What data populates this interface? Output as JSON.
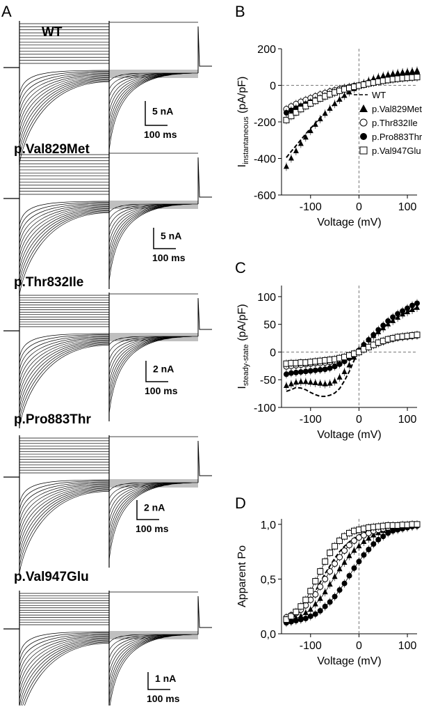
{
  "panel_labels": {
    "a": "A",
    "b": "B",
    "c": "C",
    "d": "D"
  },
  "traces": [
    {
      "title": "WT",
      "scale_current": "5 nA",
      "scale_time": "100 ms"
    },
    {
      "title": "p.Val829Met",
      "scale_current": "5 nA",
      "scale_time": "100 ms"
    },
    {
      "title": "p.Thr832Ile",
      "scale_current": "2 nA",
      "scale_time": "100 ms"
    },
    {
      "title": "p.Pro883Thr",
      "scale_current": "2 nA",
      "scale_time": "100 ms"
    },
    {
      "title": "p.Val947Glu",
      "scale_current": "1 nA",
      "scale_time": "100 ms"
    }
  ],
  "legend": [
    {
      "label": "WT",
      "marker": "dash"
    },
    {
      "label": "p.Val829Met",
      "marker": "filled-triangle"
    },
    {
      "label": "p.Thr832Ile",
      "marker": "open-circle"
    },
    {
      "label": "p.Pro883Thr",
      "marker": "filled-circle"
    },
    {
      "label": "p.Val947Glu",
      "marker": "open-square"
    }
  ],
  "chart_data": [
    {
      "panel": "B",
      "type": "scatter",
      "ylabel_main": "I",
      "ylabel_sub": "instantaneous",
      "ylabel_unit": "(pA/pF)",
      "xlabel": "Voltage (mV)",
      "xlim": [
        -160,
        120
      ],
      "ylim": [
        -600,
        200
      ],
      "xticks": [
        -100,
        0,
        100
      ],
      "yticks": [
        -600,
        -400,
        -200,
        0,
        200
      ],
      "x": [
        -150,
        -140,
        -130,
        -120,
        -110,
        -100,
        -90,
        -80,
        -70,
        -60,
        -50,
        -40,
        -30,
        -20,
        -10,
        0,
        10,
        20,
        30,
        40,
        50,
        60,
        70,
        80,
        90,
        100,
        110,
        120
      ],
      "series": [
        {
          "name": "WT",
          "marker": "dash",
          "values": [
            -395,
            -362,
            -330,
            -298,
            -266,
            -236,
            -206,
            -178,
            -150,
            -124,
            -100,
            -77,
            -56,
            -37,
            -20,
            -5,
            8,
            17,
            24,
            29,
            33,
            36,
            39,
            42,
            44,
            46,
            48,
            50
          ]
        },
        {
          "name": "p.Val829Met",
          "marker": "filled-triangle",
          "values": [
            -445,
            -400,
            -360,
            -320,
            -285,
            -250,
            -215,
            -185,
            -155,
            -128,
            -102,
            -78,
            -57,
            -38,
            -20,
            -4,
            12,
            25,
            36,
            45,
            52,
            58,
            63,
            67,
            71,
            74,
            77,
            80
          ]
        },
        {
          "name": "p.Thr832Ile",
          "marker": "open-circle",
          "values": [
            -130,
            -115,
            -102,
            -90,
            -80,
            -70,
            -60,
            -50,
            -42,
            -34,
            -27,
            -20,
            -14,
            -9,
            -4,
            0,
            6,
            12,
            17,
            22,
            26,
            30,
            33,
            36,
            39,
            41,
            43,
            45
          ]
        },
        {
          "name": "p.Pro883Thr",
          "marker": "filled-circle",
          "values": [
            -150,
            -137,
            -125,
            -113,
            -102,
            -91,
            -80,
            -70,
            -60,
            -50,
            -41,
            -32,
            -24,
            -16,
            -8,
            0,
            8,
            15,
            22,
            28,
            34,
            40,
            45,
            50,
            54,
            58,
            61,
            64
          ]
        },
        {
          "name": "p.Val947Glu",
          "marker": "open-square",
          "values": [
            -190,
            -168,
            -148,
            -130,
            -114,
            -99,
            -85,
            -72,
            -60,
            -49,
            -39,
            -30,
            -22,
            -15,
            -8,
            -2,
            4,
            10,
            15,
            20,
            25,
            29,
            33,
            36,
            39,
            41,
            43,
            45
          ]
        }
      ]
    },
    {
      "panel": "C",
      "type": "scatter",
      "ylabel_main": "I",
      "ylabel_sub": "steady-state",
      "ylabel_unit": "(pA/pF)",
      "xlabel": "Voltage (mV)",
      "xlim": [
        -160,
        120
      ],
      "ylim": [
        -100,
        120
      ],
      "xticks": [
        -100,
        0,
        100
      ],
      "yticks": [
        -100,
        -50,
        0,
        50,
        100
      ],
      "x": [
        -150,
        -140,
        -130,
        -120,
        -110,
        -100,
        -90,
        -80,
        -70,
        -60,
        -50,
        -40,
        -30,
        -20,
        -10,
        0,
        10,
        20,
        30,
        40,
        50,
        60,
        70,
        80,
        90,
        100,
        110,
        120
      ],
      "series": [
        {
          "name": "WT",
          "marker": "dash",
          "values": [
            -71,
            -68,
            -64,
            -65,
            -68,
            -73,
            -77,
            -80,
            -80,
            -78,
            -74,
            -66,
            -52,
            -35,
            -15,
            3,
            14,
            22,
            30,
            37,
            44,
            51,
            57,
            63,
            68,
            72,
            76,
            80
          ]
        },
        {
          "name": "p.Val829Met",
          "marker": "filled-triangle",
          "values": [
            -61,
            -58,
            -55,
            -54,
            -54,
            -55,
            -56,
            -57,
            -58,
            -57,
            -53,
            -46,
            -36,
            -24,
            -10,
            4,
            14,
            22,
            29,
            36,
            43,
            50,
            56,
            62,
            68,
            72,
            76,
            80
          ]
        },
        {
          "name": "p.Thr832Ile",
          "marker": "open-circle",
          "values": [
            -26,
            -25,
            -24,
            -23,
            -22,
            -21,
            -20,
            -20,
            -19,
            -18,
            -17,
            -15,
            -12,
            -8,
            -4,
            0,
            5,
            9,
            13,
            16,
            19,
            22,
            24,
            26,
            27,
            28,
            29,
            30
          ]
        },
        {
          "name": "p.Pro883Thr",
          "marker": "filled-circle",
          "values": [
            -40,
            -38,
            -37,
            -36,
            -35,
            -34,
            -33,
            -32,
            -31,
            -29,
            -26,
            -22,
            -17,
            -11,
            -5,
            3,
            13,
            22,
            31,
            40,
            48,
            56,
            63,
            69,
            74,
            79,
            84,
            88
          ]
        },
        {
          "name": "p.Val947Glu",
          "marker": "open-square",
          "values": [
            -21,
            -20,
            -20,
            -19,
            -19,
            -18,
            -17,
            -16,
            -15,
            -14,
            -13,
            -11,
            -9,
            -6,
            -3,
            0,
            5,
            9,
            13,
            17,
            20,
            23,
            25,
            27,
            28,
            29,
            30,
            31
          ]
        }
      ]
    },
    {
      "panel": "D",
      "type": "scatter",
      "ylabel_main": "Apparent Po",
      "xlabel": "Voltage (mV)",
      "xlim": [
        -160,
        120
      ],
      "ylim": [
        0,
        1.05
      ],
      "xticks": [
        -100,
        0,
        100
      ],
      "yticks": [
        0,
        0.5,
        1.0
      ],
      "ytick_labels": [
        "0,0",
        "0,5",
        "1,0"
      ],
      "x": [
        -150,
        -140,
        -130,
        -120,
        -110,
        -100,
        -90,
        -80,
        -70,
        -60,
        -50,
        -40,
        -30,
        -20,
        -10,
        0,
        10,
        20,
        30,
        40,
        50,
        60,
        70,
        80,
        90,
        100,
        110,
        120
      ],
      "series": [
        {
          "name": "WT",
          "marker": "dash",
          "values": [
            0.12,
            0.14,
            0.17,
            0.21,
            0.26,
            0.32,
            0.39,
            0.47,
            0.55,
            0.62,
            0.69,
            0.75,
            0.8,
            0.84,
            0.87,
            0.9,
            0.92,
            0.94,
            0.95,
            0.96,
            0.97,
            0.975,
            0.98,
            0.985,
            0.99,
            0.99,
            0.995,
            0.995
          ]
        },
        {
          "name": "p.Val829Met",
          "marker": "filled-triangle",
          "values": [
            0.11,
            0.12,
            0.14,
            0.16,
            0.19,
            0.22,
            0.27,
            0.32,
            0.38,
            0.45,
            0.52,
            0.59,
            0.65,
            0.71,
            0.76,
            0.8,
            0.84,
            0.87,
            0.9,
            0.92,
            0.94,
            0.95,
            0.96,
            0.97,
            0.975,
            0.98,
            0.985,
            0.99
          ]
        },
        {
          "name": "p.Thr832Ile",
          "marker": "open-circle",
          "values": [
            0.15,
            0.17,
            0.19,
            0.22,
            0.26,
            0.31,
            0.36,
            0.43,
            0.5,
            0.57,
            0.64,
            0.7,
            0.76,
            0.81,
            0.85,
            0.88,
            0.9,
            0.92,
            0.94,
            0.95,
            0.96,
            0.97,
            0.975,
            0.98,
            0.985,
            0.99,
            0.99,
            0.99
          ]
        },
        {
          "name": "p.Pro883Thr",
          "marker": "filled-circle",
          "values": [
            0.1,
            0.11,
            0.12,
            0.13,
            0.14,
            0.16,
            0.18,
            0.21,
            0.25,
            0.29,
            0.34,
            0.4,
            0.46,
            0.53,
            0.6,
            0.66,
            0.72,
            0.77,
            0.82,
            0.86,
            0.89,
            0.92,
            0.94,
            0.95,
            0.96,
            0.97,
            0.98,
            0.985
          ]
        },
        {
          "name": "p.Val947Glu",
          "marker": "open-square",
          "values": [
            0.13,
            0.16,
            0.2,
            0.25,
            0.31,
            0.39,
            0.48,
            0.57,
            0.66,
            0.74,
            0.8,
            0.85,
            0.89,
            0.92,
            0.94,
            0.95,
            0.96,
            0.97,
            0.975,
            0.98,
            0.985,
            0.99,
            0.99,
            0.99,
            0.995,
            0.995,
            1.0,
            1.0
          ]
        }
      ]
    }
  ]
}
